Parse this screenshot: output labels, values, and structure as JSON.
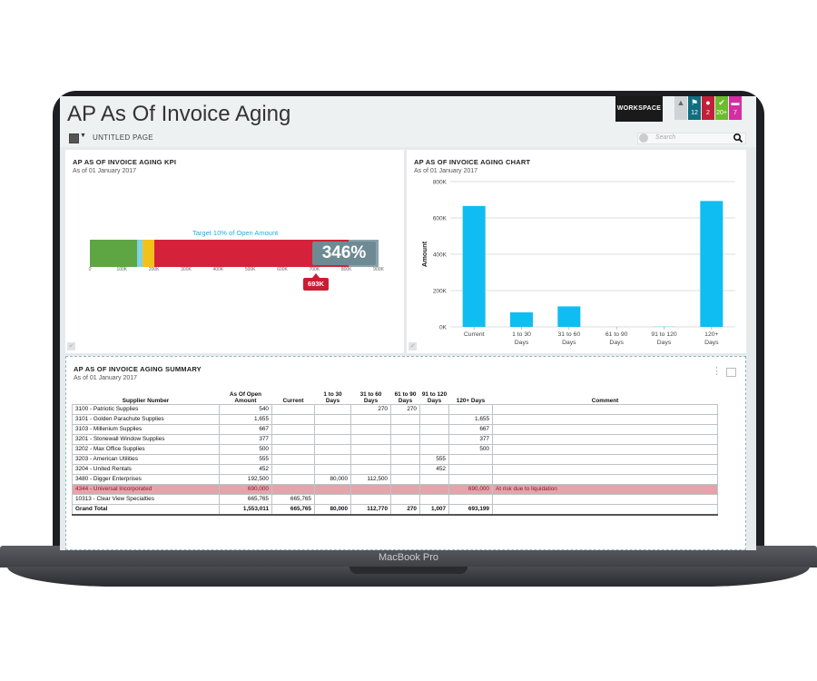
{
  "app": {
    "title": "AP As Of Invoice Aging",
    "workspace_label": "WORKSPACE",
    "page_name": "UNTITLED PAGE",
    "search_placeholder": "Search",
    "badges": [
      {
        "icon": "info-icon",
        "count": "",
        "color": "#cfd3d6"
      },
      {
        "icon": "flag-icon",
        "count": "12",
        "color": "#0f6e7f"
      },
      {
        "icon": "bell-icon",
        "count": "2",
        "color": "#c2203a"
      },
      {
        "icon": "check-icon",
        "count": "20+",
        "color": "#6cbd2d"
      },
      {
        "icon": "chat-icon",
        "count": "7",
        "color": "#d42ea3"
      }
    ],
    "device_label": "MacBook Pro"
  },
  "kpi": {
    "title": "AP AS OF INVOICE AGING KPI",
    "subtitle": "As of 01 January 2017",
    "target_label": "Target 10% of Open Amount",
    "percent_label": "346%",
    "marker_label": "693K",
    "tick_labels": [
      "0",
      "100K",
      "200K",
      "300K",
      "400K",
      "500K",
      "600K",
      "700K",
      "800K",
      "900K"
    ],
    "segment_colors": [
      "#5ea543",
      "#7ed3e8",
      "#f3c21a",
      "#d5213a",
      "#8aa2ab"
    ]
  },
  "chart": {
    "title": "AP AS OF INVOICE AGING CHART",
    "subtitle": "As of 01 January 2017"
  },
  "chart_data": {
    "type": "bar",
    "categories": [
      "Current",
      "1 to 30 Days",
      "31 to 60 Days",
      "61 to 90 Days",
      "91 to 120 Days",
      "120+ Days"
    ],
    "series": [
      {
        "values": [
          665765,
          80000,
          112770,
          270,
          1007,
          693199
        ]
      }
    ],
    "xlabel": "",
    "ylabel": "Amount",
    "ylim": [
      0,
      800000
    ],
    "yticks": [
      "0K",
      "200K",
      "400K",
      "600K",
      "800K"
    ],
    "bar_color": "#0fbdf2",
    "grid": true
  },
  "summary": {
    "title": "AP AS OF INVOICE AGING SUMMARY",
    "subtitle": "As of 01 January 2017",
    "headers": [
      "Supplier Number",
      "As Of Open Amount",
      "Current",
      "1 to 30 Days",
      "31 to 60 Days",
      "61 to 90 Days",
      "91 to 120 Days",
      "120+ Days",
      "Comment"
    ],
    "rows": [
      [
        "3100 - Patriotic Supplies",
        "540",
        "",
        "",
        "270",
        "270",
        "",
        "",
        ""
      ],
      [
        "3101 - Golden Parachute Supplies",
        "1,655",
        "",
        "",
        "",
        "",
        "",
        "1,655",
        ""
      ],
      [
        "3103 - Millenium Supplies",
        "667",
        "",
        "",
        "",
        "",
        "",
        "667",
        ""
      ],
      [
        "3201 - Stonewall Window Supplies",
        "377",
        "",
        "",
        "",
        "",
        "",
        "377",
        ""
      ],
      [
        "3202 - Max Office Supplies",
        "500",
        "",
        "",
        "",
        "",
        "",
        "500",
        ""
      ],
      [
        "3203 - American Utilities",
        "555",
        "",
        "",
        "",
        "",
        "555",
        "",
        ""
      ],
      [
        "3204 - United Rentals",
        "452",
        "",
        "",
        "",
        "",
        "452",
        "",
        ""
      ],
      [
        "3480 - Digger Enterprises",
        "192,500",
        "",
        "80,000",
        "112,500",
        "",
        "",
        "",
        ""
      ],
      [
        "4344 - Universal Incorporated",
        "690,000",
        "",
        "",
        "",
        "",
        "",
        "690,000",
        "At risk due to liquidation"
      ],
      [
        "10313 - Clear View Specialties",
        "665,765",
        "665,765",
        "",
        "",
        "",
        "",
        "",
        ""
      ]
    ],
    "total": [
      "Grand Total",
      "1,553,011",
      "665,765",
      "80,000",
      "112,770",
      "270",
      "1,007",
      "693,199",
      ""
    ],
    "highlight_row_index": 8,
    "highlight_color": "#e7a2ac"
  }
}
